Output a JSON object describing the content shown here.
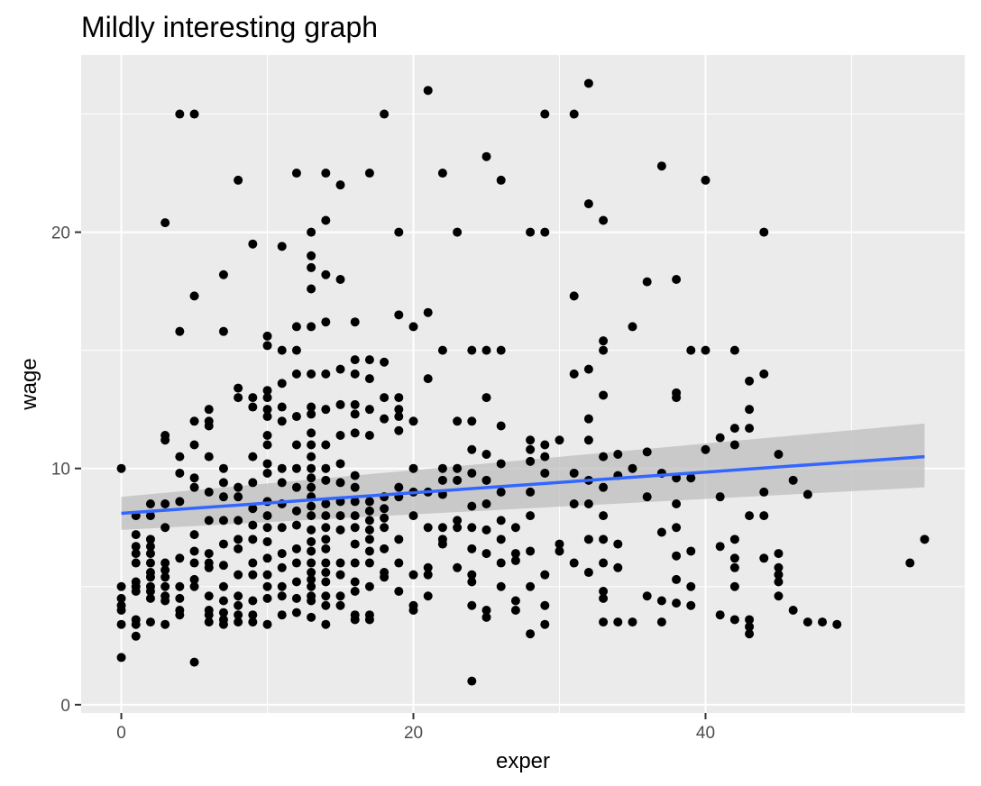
{
  "chart_data": {
    "type": "scatter",
    "title": "Mildly interesting graph",
    "xlabel": "exper",
    "ylabel": "wage",
    "xlim": [
      -2.75,
      57.75
    ],
    "ylim": [
      -0.35,
      27.5
    ],
    "x_ticks": [
      0,
      20,
      40
    ],
    "y_ticks": [
      0,
      10,
      20
    ],
    "x_minor": [
      10,
      30,
      50
    ],
    "y_minor": [
      5,
      15,
      25
    ],
    "grid": true,
    "legend": "none",
    "points": [
      [
        0,
        10
      ],
      [
        0,
        5
      ],
      [
        0,
        4.5
      ],
      [
        0,
        4.2
      ],
      [
        0,
        4
      ],
      [
        0,
        3.4
      ],
      [
        0,
        2
      ],
      [
        1,
        8
      ],
      [
        1,
        7.2
      ],
      [
        1,
        6.7
      ],
      [
        1,
        6.4
      ],
      [
        1,
        6
      ],
      [
        1,
        5.2
      ],
      [
        1,
        5
      ],
      [
        1,
        4.8
      ],
      [
        1,
        3.6
      ],
      [
        1,
        3.4
      ],
      [
        1,
        2.9
      ],
      [
        2,
        8.5
      ],
      [
        2,
        8
      ],
      [
        2,
        7
      ],
      [
        2,
        6.7
      ],
      [
        2,
        6.4
      ],
      [
        2,
        6
      ],
      [
        2,
        5.6
      ],
      [
        2,
        5.4
      ],
      [
        2,
        5
      ],
      [
        2,
        4.8
      ],
      [
        2,
        4.5
      ],
      [
        2,
        3.5
      ],
      [
        3,
        20.4
      ],
      [
        3,
        11.4
      ],
      [
        3,
        11.2
      ],
      [
        3,
        8.5
      ],
      [
        3,
        7.5
      ],
      [
        3,
        6
      ],
      [
        3,
        5.7
      ],
      [
        3,
        5.4
      ],
      [
        3,
        5
      ],
      [
        3,
        4.6
      ],
      [
        3,
        4.4
      ],
      [
        3,
        3.4
      ],
      [
        4,
        25
      ],
      [
        4,
        15.8
      ],
      [
        4,
        10.5
      ],
      [
        4,
        9.8
      ],
      [
        4,
        8.6
      ],
      [
        4,
        6.2
      ],
      [
        4,
        5
      ],
      [
        4,
        4.5
      ],
      [
        4,
        4
      ],
      [
        4,
        3.8
      ],
      [
        5,
        25
      ],
      [
        5,
        17.3
      ],
      [
        5,
        12
      ],
      [
        5,
        11
      ],
      [
        5,
        9.6
      ],
      [
        5,
        9.2
      ],
      [
        5,
        7.2
      ],
      [
        5,
        6.5
      ],
      [
        5,
        6
      ],
      [
        5,
        5.3
      ],
      [
        5,
        5
      ],
      [
        5,
        1.8
      ],
      [
        6,
        12.5
      ],
      [
        6,
        12
      ],
      [
        6,
        11.8
      ],
      [
        6,
        10.5
      ],
      [
        6,
        9
      ],
      [
        6,
        7.8
      ],
      [
        6,
        6.4
      ],
      [
        6,
        6
      ],
      [
        6,
        5.8
      ],
      [
        6,
        4.6
      ],
      [
        6,
        4
      ],
      [
        6,
        3.8
      ],
      [
        6,
        3.5
      ],
      [
        7,
        18.2
      ],
      [
        7,
        15.8
      ],
      [
        7,
        10
      ],
      [
        7,
        9.4
      ],
      [
        7,
        8.8
      ],
      [
        7,
        7.8
      ],
      [
        7,
        6.8
      ],
      [
        7,
        5.9
      ],
      [
        7,
        5
      ],
      [
        7,
        4.4
      ],
      [
        7,
        3.9
      ],
      [
        7,
        3.6
      ],
      [
        7,
        3.4
      ],
      [
        8,
        22.2
      ],
      [
        8,
        13.4
      ],
      [
        8,
        13
      ],
      [
        8,
        9.2
      ],
      [
        8,
        8.8
      ],
      [
        8,
        7.8
      ],
      [
        8,
        7
      ],
      [
        8,
        6.6
      ],
      [
        8,
        5.5
      ],
      [
        8,
        4.6
      ],
      [
        8,
        4.2
      ],
      [
        8,
        3.8
      ],
      [
        8,
        3.5
      ],
      [
        9,
        19.5
      ],
      [
        9,
        13
      ],
      [
        9,
        12.6
      ],
      [
        9,
        10.5
      ],
      [
        9,
        9.4
      ],
      [
        9,
        8.3
      ],
      [
        9,
        7.6
      ],
      [
        9,
        7
      ],
      [
        9,
        6
      ],
      [
        9,
        5.5
      ],
      [
        9,
        4.4
      ],
      [
        9,
        3.8
      ],
      [
        9,
        3.5
      ],
      [
        10,
        15.6
      ],
      [
        10,
        15.2
      ],
      [
        10,
        13.3
      ],
      [
        10,
        13
      ],
      [
        10,
        12.5
      ],
      [
        10,
        12.2
      ],
      [
        10,
        11.4
      ],
      [
        10,
        11
      ],
      [
        10,
        10.2
      ],
      [
        10,
        9.8
      ],
      [
        10,
        8.6
      ],
      [
        10,
        8
      ],
      [
        10,
        7.5
      ],
      [
        10,
        6.9
      ],
      [
        10,
        6.2
      ],
      [
        10,
        5.5
      ],
      [
        10,
        5
      ],
      [
        10,
        4.5
      ],
      [
        10,
        3.4
      ],
      [
        11,
        19.4
      ],
      [
        11,
        15
      ],
      [
        11,
        13.6
      ],
      [
        11,
        12.6
      ],
      [
        11,
        12
      ],
      [
        11,
        10
      ],
      [
        11,
        9.4
      ],
      [
        11,
        8.5
      ],
      [
        11,
        7.5
      ],
      [
        11,
        6.4
      ],
      [
        11,
        5.8
      ],
      [
        11,
        5
      ],
      [
        11,
        4.6
      ],
      [
        11,
        3.8
      ],
      [
        12,
        22.5
      ],
      [
        12,
        16
      ],
      [
        12,
        15
      ],
      [
        12,
        14
      ],
      [
        12,
        12.2
      ],
      [
        12,
        11
      ],
      [
        12,
        10
      ],
      [
        12,
        9.2
      ],
      [
        12,
        8.2
      ],
      [
        12,
        7.6
      ],
      [
        12,
        6.6
      ],
      [
        12,
        6
      ],
      [
        12,
        5.2
      ],
      [
        12,
        4.5
      ],
      [
        12,
        3.9
      ],
      [
        13,
        20
      ],
      [
        13,
        19
      ],
      [
        13,
        18.5
      ],
      [
        13,
        17.6
      ],
      [
        13,
        16
      ],
      [
        13,
        14
      ],
      [
        13,
        12.6
      ],
      [
        13,
        12.3
      ],
      [
        13,
        11.5
      ],
      [
        13,
        11
      ],
      [
        13,
        10.5
      ],
      [
        13,
        10
      ],
      [
        13,
        9.6
      ],
      [
        13,
        9.2
      ],
      [
        13,
        8.8
      ],
      [
        13,
        8.4
      ],
      [
        13,
        8
      ],
      [
        13,
        7.4
      ],
      [
        13,
        6.9
      ],
      [
        13,
        6.5
      ],
      [
        13,
        6
      ],
      [
        13,
        5.6
      ],
      [
        13,
        5.3
      ],
      [
        13,
        5
      ],
      [
        13,
        4.6
      ],
      [
        13,
        4.4
      ],
      [
        13,
        3.7
      ],
      [
        14,
        22.5
      ],
      [
        14,
        20.5
      ],
      [
        14,
        18.2
      ],
      [
        14,
        16.2
      ],
      [
        14,
        14
      ],
      [
        14,
        12.5
      ],
      [
        14,
        11
      ],
      [
        14,
        10
      ],
      [
        14,
        9.5
      ],
      [
        14,
        8.5
      ],
      [
        14,
        8
      ],
      [
        14,
        7.5
      ],
      [
        14,
        7
      ],
      [
        14,
        6.6
      ],
      [
        14,
        6
      ],
      [
        14,
        5.6
      ],
      [
        14,
        5.2
      ],
      [
        14,
        4.6
      ],
      [
        14,
        4.2
      ],
      [
        14,
        3.4
      ],
      [
        15,
        22
      ],
      [
        15,
        18
      ],
      [
        15,
        14.2
      ],
      [
        15,
        12.7
      ],
      [
        15,
        11.4
      ],
      [
        15,
        10.2
      ],
      [
        15,
        9.4
      ],
      [
        15,
        8.6
      ],
      [
        15,
        8
      ],
      [
        15,
        7.4
      ],
      [
        15,
        6
      ],
      [
        15,
        5.5
      ],
      [
        15,
        4.6
      ],
      [
        15,
        4.2
      ],
      [
        16,
        16.2
      ],
      [
        16,
        14.6
      ],
      [
        16,
        14
      ],
      [
        16,
        12.7
      ],
      [
        16,
        12.3
      ],
      [
        16,
        11.5
      ],
      [
        16,
        9.7
      ],
      [
        16,
        9.2
      ],
      [
        16,
        8.6
      ],
      [
        16,
        8
      ],
      [
        16,
        7.5
      ],
      [
        16,
        6.8
      ],
      [
        16,
        6
      ],
      [
        16,
        5.2
      ],
      [
        16,
        4.8
      ],
      [
        16,
        3.8
      ],
      [
        16,
        3.6
      ],
      [
        17,
        22.5
      ],
      [
        17,
        14.6
      ],
      [
        17,
        13.8
      ],
      [
        17,
        12.5
      ],
      [
        17,
        11.4
      ],
      [
        17,
        8.6
      ],
      [
        17,
        8.2
      ],
      [
        17,
        7.8
      ],
      [
        17,
        7.4
      ],
      [
        17,
        7
      ],
      [
        17,
        6.5
      ],
      [
        17,
        6
      ],
      [
        17,
        5
      ],
      [
        17,
        3.8
      ],
      [
        17,
        3.6
      ],
      [
        18,
        25
      ],
      [
        18,
        14.5
      ],
      [
        18,
        13
      ],
      [
        18,
        12.1
      ],
      [
        18,
        8.8
      ],
      [
        18,
        8.3
      ],
      [
        18,
        7.9
      ],
      [
        18,
        7.5
      ],
      [
        18,
        6.6
      ],
      [
        18,
        5.6
      ],
      [
        18,
        5.4
      ],
      [
        19,
        20
      ],
      [
        19,
        16.5
      ],
      [
        19,
        13
      ],
      [
        19,
        12.5
      ],
      [
        19,
        12.2
      ],
      [
        19,
        11.6
      ],
      [
        19,
        9.2
      ],
      [
        19,
        8.8
      ],
      [
        19,
        7
      ],
      [
        19,
        6
      ],
      [
        19,
        4.8
      ],
      [
        20,
        16
      ],
      [
        20,
        12
      ],
      [
        20,
        10
      ],
      [
        20,
        9
      ],
      [
        20,
        8
      ],
      [
        20,
        5.5
      ],
      [
        20,
        4.2
      ],
      [
        20,
        4
      ],
      [
        21,
        26
      ],
      [
        21,
        16.6
      ],
      [
        21,
        13.8
      ],
      [
        21,
        9
      ],
      [
        21,
        7.5
      ],
      [
        21,
        5.8
      ],
      [
        21,
        5.5
      ],
      [
        21,
        4.6
      ],
      [
        22,
        22.5
      ],
      [
        22,
        15
      ],
      [
        22,
        10
      ],
      [
        22,
        9.5
      ],
      [
        22,
        8.9
      ],
      [
        22,
        7.5
      ],
      [
        22,
        7
      ],
      [
        22,
        6.8
      ],
      [
        23,
        20
      ],
      [
        23,
        12
      ],
      [
        23,
        10
      ],
      [
        23,
        9.5
      ],
      [
        23,
        7.8
      ],
      [
        23,
        7.5
      ],
      [
        23,
        5.8
      ],
      [
        24,
        15
      ],
      [
        24,
        12
      ],
      [
        24,
        10.8
      ],
      [
        24,
        9.8
      ],
      [
        24,
        8.4
      ],
      [
        24,
        7.5
      ],
      [
        24,
        6.6
      ],
      [
        24,
        5.5
      ],
      [
        24,
        5.2
      ],
      [
        24,
        4.2
      ],
      [
        24,
        1
      ],
      [
        25,
        23.2
      ],
      [
        25,
        15
      ],
      [
        25,
        13
      ],
      [
        25,
        10.6
      ],
      [
        25,
        9.5
      ],
      [
        25,
        8.5
      ],
      [
        25,
        7.4
      ],
      [
        25,
        6.4
      ],
      [
        25,
        4
      ],
      [
        25,
        3.7
      ],
      [
        26,
        22.2
      ],
      [
        26,
        15
      ],
      [
        26,
        11.8
      ],
      [
        26,
        10.2
      ],
      [
        26,
        9
      ],
      [
        26,
        7.8
      ],
      [
        26,
        7
      ],
      [
        26,
        6
      ],
      [
        26,
        5
      ],
      [
        27,
        7.5
      ],
      [
        27,
        6.4
      ],
      [
        27,
        6.1
      ],
      [
        27,
        4.4
      ],
      [
        27,
        4
      ],
      [
        28,
        20
      ],
      [
        28,
        11.2
      ],
      [
        28,
        10.8
      ],
      [
        28,
        10.3
      ],
      [
        28,
        9
      ],
      [
        28,
        8
      ],
      [
        28,
        6.5
      ],
      [
        28,
        5
      ],
      [
        28,
        3
      ],
      [
        29,
        25
      ],
      [
        29,
        20
      ],
      [
        29,
        11
      ],
      [
        29,
        10.5
      ],
      [
        29,
        9.8
      ],
      [
        29,
        5.5
      ],
      [
        29,
        4.2
      ],
      [
        29,
        3.4
      ],
      [
        30,
        11.2
      ],
      [
        30,
        6.8
      ],
      [
        30,
        6.5
      ],
      [
        31,
        25
      ],
      [
        31,
        17.3
      ],
      [
        31,
        14
      ],
      [
        31,
        9.8
      ],
      [
        31,
        8.5
      ],
      [
        31,
        6
      ],
      [
        32,
        26.3
      ],
      [
        32,
        21.2
      ],
      [
        32,
        14.2
      ],
      [
        32,
        12.1
      ],
      [
        32,
        11.2
      ],
      [
        32,
        9.5
      ],
      [
        32,
        8.5
      ],
      [
        32,
        7
      ],
      [
        32,
        5.6
      ],
      [
        33,
        20.5
      ],
      [
        33,
        15.4
      ],
      [
        33,
        15
      ],
      [
        33,
        13.1
      ],
      [
        33,
        10.5
      ],
      [
        33,
        9.2
      ],
      [
        33,
        8
      ],
      [
        33,
        7
      ],
      [
        33,
        6
      ],
      [
        33,
        4.8
      ],
      [
        33,
        4.5
      ],
      [
        33,
        3.5
      ],
      [
        34,
        10.6
      ],
      [
        34,
        9.7
      ],
      [
        34,
        6.8
      ],
      [
        34,
        5.8
      ],
      [
        34,
        3.5
      ],
      [
        35,
        16
      ],
      [
        35,
        10
      ],
      [
        35,
        3.5
      ],
      [
        36,
        17.9
      ],
      [
        36,
        10.7
      ],
      [
        36,
        8.8
      ],
      [
        36,
        4.6
      ],
      [
        37,
        22.8
      ],
      [
        37,
        9.8
      ],
      [
        37,
        7.3
      ],
      [
        37,
        4.4
      ],
      [
        37,
        3.5
      ],
      [
        38,
        18
      ],
      [
        38,
        13.2
      ],
      [
        38,
        13
      ],
      [
        38,
        9.6
      ],
      [
        38,
        8.5
      ],
      [
        38,
        7.5
      ],
      [
        38,
        6.3
      ],
      [
        38,
        5.3
      ],
      [
        38,
        4.3
      ],
      [
        39,
        15
      ],
      [
        39,
        9.6
      ],
      [
        39,
        6.5
      ],
      [
        39,
        5
      ],
      [
        39,
        4.2
      ],
      [
        40,
        22.2
      ],
      [
        40,
        15
      ],
      [
        40,
        10.8
      ],
      [
        41,
        11.3
      ],
      [
        41,
        8.8
      ],
      [
        41,
        6.7
      ],
      [
        41,
        3.8
      ],
      [
        42,
        15
      ],
      [
        42,
        11.7
      ],
      [
        42,
        11
      ],
      [
        42,
        7
      ],
      [
        42,
        6.2
      ],
      [
        42,
        5.8
      ],
      [
        42,
        5
      ],
      [
        42,
        3.6
      ],
      [
        43,
        13.7
      ],
      [
        43,
        12.5
      ],
      [
        43,
        11.7
      ],
      [
        43,
        8
      ],
      [
        43,
        3.6
      ],
      [
        43,
        3.3
      ],
      [
        43,
        3
      ],
      [
        44,
        20
      ],
      [
        44,
        14
      ],
      [
        44,
        9
      ],
      [
        44,
        8
      ],
      [
        44,
        6.2
      ],
      [
        45,
        10.6
      ],
      [
        45,
        6.4
      ],
      [
        45,
        5.8
      ],
      [
        45,
        5.5
      ],
      [
        45,
        5.2
      ],
      [
        45,
        4.6
      ],
      [
        46,
        9.5
      ],
      [
        46,
        4
      ],
      [
        47,
        8.9
      ],
      [
        47,
        3.5
      ],
      [
        48,
        3.5
      ],
      [
        49,
        3.4
      ],
      [
        54,
        6
      ],
      [
        55,
        7
      ]
    ],
    "fit": {
      "type": "linear",
      "start": [
        0,
        8.1
      ],
      "end": [
        55,
        10.5
      ],
      "ci_lower": [
        [
          0,
          7.4
        ],
        [
          55,
          9.2
        ]
      ],
      "ci_upper": [
        [
          0,
          8.8
        ],
        [
          55,
          11.9
        ]
      ]
    },
    "colors": {
      "panel": "#ebebeb",
      "grid": "#ffffff",
      "points": "#000000",
      "fit_line": "#3366ff",
      "ci_band": "#bebebe"
    }
  }
}
